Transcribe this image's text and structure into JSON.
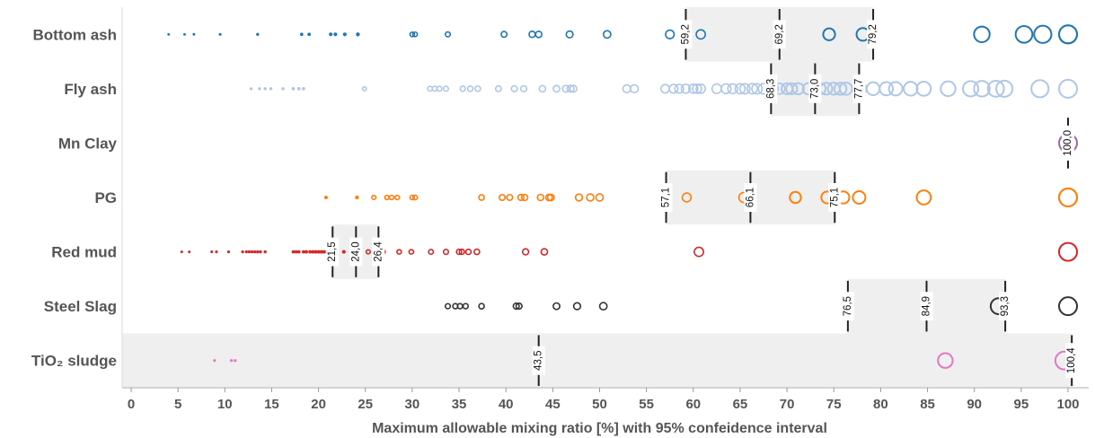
{
  "chart_data": {
    "type": "scatter",
    "xlabel": "Maximum allowable mixing ratio [%] with 95% confeidence interval",
    "xlim": [
      0,
      100
    ],
    "xticks": [
      0,
      5,
      10,
      15,
      20,
      25,
      30,
      35,
      40,
      45,
      50,
      55,
      60,
      65,
      70,
      75,
      80,
      85,
      90,
      95,
      100
    ],
    "grid": false,
    "legend": "none",
    "series": [
      {
        "name": "Bottom ash",
        "color": "#1f77b4",
        "values": [
          4,
          5.7,
          6.7,
          9.5,
          13.5,
          18.2,
          19,
          21.3,
          21.8,
          22.8,
          24.2,
          30,
          30.3,
          33.8,
          39.8,
          42.8,
          43.5,
          46.8,
          50.8,
          57.5,
          60.8,
          74.5,
          78.1,
          90.8,
          95.3,
          97.3,
          100,
          100
        ],
        "ci": [
          59.2,
          69.2,
          79.2
        ],
        "ci_labels": [
          "59,2",
          "69,2",
          "79,2"
        ]
      },
      {
        "name": "Fly ash",
        "color": "#aec7e8",
        "values": [
          12.8,
          13.7,
          14.3,
          14.9,
          16.2,
          17.3,
          17.9,
          18.4,
          24.9,
          31.9,
          32.4,
          32.9,
          33.6,
          35.4,
          36.2,
          37,
          39.2,
          40.9,
          41.9,
          43.9,
          45.4,
          46.4,
          46.9,
          47.2,
          52.9,
          53.7,
          57,
          57.9,
          58.5,
          59.2,
          60,
          60.4,
          60.8,
          62.5,
          63.5,
          64.2,
          65,
          65.5,
          66.3,
          66.8,
          67.5,
          68.5,
          69.2,
          70,
          70.5,
          71.2,
          72.3,
          73.5,
          74.2,
          75,
          75.7,
          76.3,
          77.8,
          79.2,
          80.6,
          81.6,
          83.2,
          84.6,
          87.2,
          89.6,
          90.8,
          92.3,
          93.2,
          97,
          100
        ],
        "ci": [
          68.3,
          73.0,
          77.7
        ],
        "ci_labels": [
          "68,3",
          "73,0",
          "77,7"
        ]
      },
      {
        "name": "Mn Clay",
        "color": "#9467bd",
        "values": [
          100
        ],
        "ci": [
          100.0
        ],
        "ci_labels": [
          "100,0"
        ]
      },
      {
        "name": "PG",
        "color": "#ff7f0e",
        "values": [
          20.8,
          24.1,
          25.9,
          27.3,
          27.8,
          28.4,
          30,
          30.3,
          37.4,
          39.6,
          40.4,
          41.6,
          42,
          43.7,
          44.6,
          44.8,
          47.8,
          49,
          50,
          57.2,
          59.3,
          65.4,
          70.9,
          74.3,
          76,
          77.7,
          84.6,
          100,
          100
        ],
        "ci": [
          57.1,
          66.1,
          75.1
        ],
        "ci_labels": [
          "57,1",
          "66,1",
          "75,1"
        ]
      },
      {
        "name": "Red mud",
        "color": "#d62728",
        "values": [
          5.4,
          6.2,
          8.6,
          9.1,
          10.4,
          11.9,
          12.3,
          12.6,
          12.9,
          13.2,
          13.5,
          13.8,
          14.3,
          17.3,
          17.6,
          17.9,
          18.4,
          18.7,
          19.1,
          19.4,
          19.7,
          20,
          20.3,
          20.6,
          21.6,
          22.7,
          25.3,
          26.9,
          28.6,
          29.9,
          32,
          33.6,
          35,
          35.3,
          36,
          36.9,
          42.1,
          44.1,
          60.6,
          100
        ],
        "ci": [
          21.5,
          24.0,
          26.4
        ],
        "ci_labels": [
          "21,5",
          "24,0",
          "26,4"
        ]
      },
      {
        "name": "Steel Slag",
        "color": "#333333",
        "values": [
          33.8,
          34.6,
          35.1,
          35.7,
          37.4,
          41.1,
          41.4,
          45.4,
          47.6,
          50.4,
          92.6,
          100
        ],
        "ci": [
          76.5,
          84.9,
          93.3
        ],
        "ci_labels": [
          "76,5",
          "84,9",
          "93,3"
        ]
      },
      {
        "name": "TiO₂ sludge",
        "color": "#e377c2",
        "values": [
          8.9,
          10.7,
          11.1,
          86.9,
          99.6
        ],
        "ci": [
          null,
          43.5,
          100.4
        ],
        "ci_labels": [
          "43,5",
          "100,4"
        ]
      }
    ]
  }
}
